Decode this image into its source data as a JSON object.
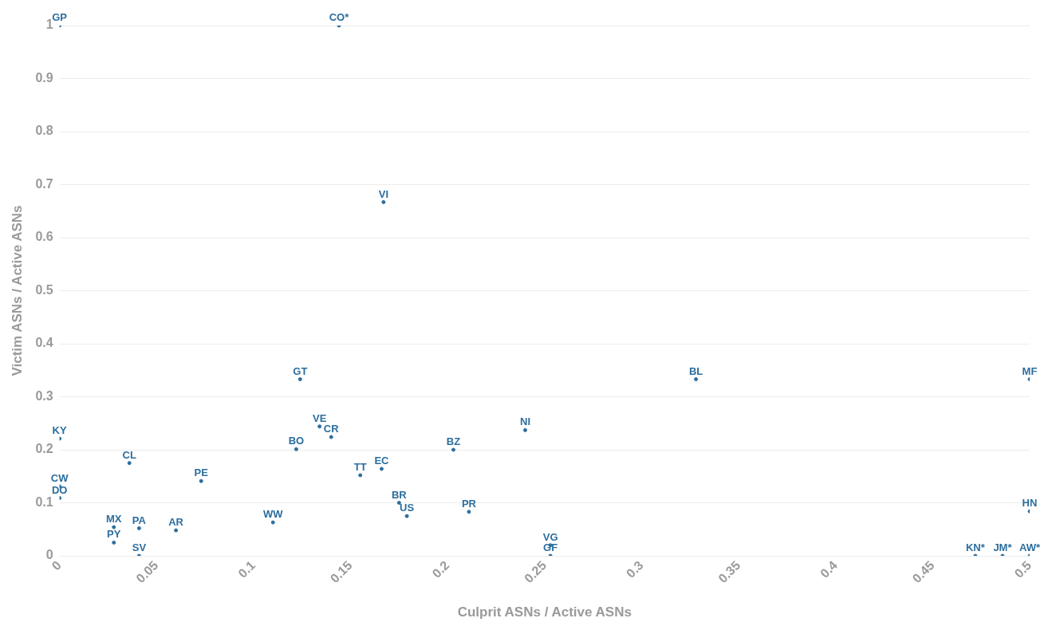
{
  "chart_data": {
    "type": "scatter",
    "xlabel": "Culprit ASNs / Active ASNs",
    "ylabel": "Victim ASNs / Active ASNs",
    "color": "#2c6e9e",
    "marker": "circle",
    "grid": "y",
    "legend": false,
    "xlim": [
      0,
      0.5
    ],
    "xticks": [
      0,
      0.05,
      0.1,
      0.15,
      0.2,
      0.25,
      0.3,
      0.35,
      0.4,
      0.45,
      0.5
    ],
    "ylim": [
      0,
      1
    ],
    "yticks": [
      0,
      0.1,
      0.2,
      0.3,
      0.4,
      0.5,
      0.6,
      0.7,
      0.8,
      0.9,
      1
    ],
    "x": [
      0,
      0.144,
      0.167,
      0.124,
      0.328,
      0.5,
      0.134,
      0.14,
      0.24,
      0,
      0.122,
      0.203,
      0.036,
      0.166,
      0.155,
      0.073,
      0,
      0,
      0.175,
      0.211,
      0.5,
      0.179,
      0.11,
      0.028,
      0.041,
      0.06,
      0.028,
      0.253,
      0.041,
      0.253,
      0.472,
      0.486,
      0.5
    ],
    "values": [
      1,
      1,
      0.667,
      0.333,
      0.333,
      0.333,
      0.244,
      0.224,
      0.237,
      0.221,
      0.201,
      0.2,
      0.175,
      0.164,
      0.152,
      0.141,
      0.131,
      0.109,
      0.1,
      0.083,
      0.084,
      0.075,
      0.063,
      0.054,
      0.052,
      0.048,
      0.025,
      0.02,
      0,
      0,
      0,
      0,
      0
    ],
    "value_labels": [
      "GP",
      "CO*",
      "VI",
      "GT",
      "BL",
      "MF",
      "VE",
      "CR",
      "NI",
      "KY",
      "BO",
      "BZ",
      "CL",
      "EC",
      "TT",
      "PE",
      "CW",
      "DO",
      "BR",
      "PR",
      "HN",
      "US",
      "WW",
      "MX",
      "PA",
      "AR",
      "PY",
      "VG",
      "SV",
      "GF",
      "KN*",
      "JM*",
      "AW*"
    ]
  }
}
